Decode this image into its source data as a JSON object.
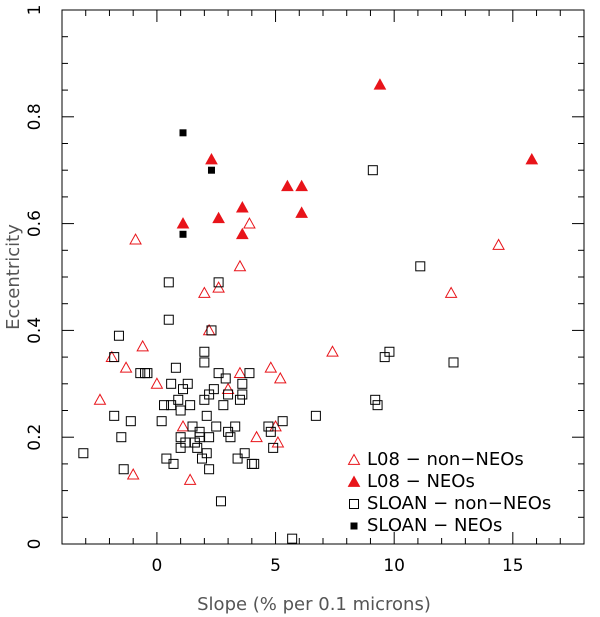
{
  "chart_data": {
    "type": "scatter",
    "title": "",
    "xlabel": "Slope (% per 0.1 microns)",
    "ylabel": "Eccentricity",
    "xlim": [
      -4,
      18
    ],
    "ylim": [
      0,
      1
    ],
    "x_ticks": [
      0,
      5,
      10,
      15
    ],
    "y_ticks": [
      0,
      0.2,
      0.4,
      0.6,
      0.8,
      1
    ],
    "grid": false,
    "legend_position": "bottom-right",
    "series": [
      {
        "name": "L08 − non−NEOs",
        "marker": "open-triangle",
        "color": "#e8141a",
        "points": [
          [
            -2.4,
            0.27
          ],
          [
            -1.9,
            0.35
          ],
          [
            -1.3,
            0.33
          ],
          [
            -0.9,
            0.57
          ],
          [
            -0.6,
            0.37
          ],
          [
            0.0,
            0.3
          ],
          [
            1.1,
            0.22
          ],
          [
            1.4,
            0.12
          ],
          [
            2.2,
            0.4
          ],
          [
            2.0,
            0.47
          ],
          [
            2.6,
            0.48
          ],
          [
            3.0,
            0.29
          ],
          [
            3.5,
            0.52
          ],
          [
            3.9,
            0.6
          ],
          [
            3.5,
            0.32
          ],
          [
            4.2,
            0.2
          ],
          [
            4.8,
            0.33
          ],
          [
            5.0,
            0.22
          ],
          [
            5.1,
            0.19
          ],
          [
            5.2,
            0.31
          ],
          [
            7.4,
            0.36
          ],
          [
            12.4,
            0.47
          ],
          [
            14.4,
            0.56
          ],
          [
            -1.0,
            0.13
          ]
        ]
      },
      {
        "name": "L08 − NEOs",
        "marker": "filled-triangle",
        "color": "#e8141a",
        "points": [
          [
            9.4,
            0.86
          ],
          [
            15.8,
            0.72
          ],
          [
            1.1,
            0.6
          ],
          [
            2.3,
            0.72
          ],
          [
            2.6,
            0.61
          ],
          [
            3.6,
            0.63
          ],
          [
            3.6,
            0.58
          ],
          [
            5.5,
            0.67
          ],
          [
            6.1,
            0.67
          ],
          [
            6.1,
            0.62
          ]
        ]
      },
      {
        "name": "SLOAN − non−NEOs",
        "marker": "open-square",
        "color": "#000000",
        "points": [
          [
            -3.1,
            0.17
          ],
          [
            -1.8,
            0.35
          ],
          [
            -1.8,
            0.24
          ],
          [
            -1.6,
            0.39
          ],
          [
            -1.5,
            0.2
          ],
          [
            -1.4,
            0.14
          ],
          [
            -1.1,
            0.23
          ],
          [
            -0.7,
            0.32
          ],
          [
            -0.5,
            0.32
          ],
          [
            -0.4,
            0.32
          ],
          [
            0.2,
            0.23
          ],
          [
            0.3,
            0.26
          ],
          [
            0.5,
            0.42
          ],
          [
            0.5,
            0.49
          ],
          [
            0.6,
            0.3
          ],
          [
            0.6,
            0.26
          ],
          [
            0.7,
            0.15
          ],
          [
            0.8,
            0.33
          ],
          [
            0.9,
            0.27
          ],
          [
            1.0,
            0.25
          ],
          [
            1.0,
            0.2
          ],
          [
            1.1,
            0.29
          ],
          [
            1.2,
            0.19
          ],
          [
            1.3,
            0.3
          ],
          [
            1.4,
            0.26
          ],
          [
            1.5,
            0.22
          ],
          [
            1.6,
            0.19
          ],
          [
            1.7,
            0.18
          ],
          [
            1.8,
            0.21
          ],
          [
            1.9,
            0.16
          ],
          [
            2.0,
            0.36
          ],
          [
            2.0,
            0.34
          ],
          [
            2.0,
            0.27
          ],
          [
            2.1,
            0.24
          ],
          [
            2.1,
            0.17
          ],
          [
            2.2,
            0.14
          ],
          [
            2.2,
            0.28
          ],
          [
            2.3,
            0.4
          ],
          [
            2.4,
            0.29
          ],
          [
            2.5,
            0.22
          ],
          [
            2.6,
            0.49
          ],
          [
            2.6,
            0.32
          ],
          [
            2.7,
            0.08
          ],
          [
            2.8,
            0.26
          ],
          [
            2.9,
            0.31
          ],
          [
            3.0,
            0.21
          ],
          [
            3.0,
            0.28
          ],
          [
            3.1,
            0.2
          ],
          [
            3.3,
            0.22
          ],
          [
            3.4,
            0.16
          ],
          [
            3.5,
            0.27
          ],
          [
            3.6,
            0.28
          ],
          [
            3.7,
            0.17
          ],
          [
            3.9,
            0.32
          ],
          [
            4.0,
            0.15
          ],
          [
            4.1,
            0.15
          ],
          [
            4.7,
            0.22
          ],
          [
            4.8,
            0.21
          ],
          [
            4.9,
            0.18
          ],
          [
            5.3,
            0.23
          ],
          [
            5.7,
            0.01
          ],
          [
            6.7,
            0.24
          ],
          [
            9.1,
            0.7
          ],
          [
            9.2,
            0.27
          ],
          [
            9.3,
            0.26
          ],
          [
            9.6,
            0.35
          ],
          [
            9.8,
            0.36
          ],
          [
            11.1,
            0.52
          ],
          [
            12.5,
            0.34
          ],
          [
            2.2,
            0.2
          ],
          [
            1.0,
            0.18
          ],
          [
            1.8,
            0.2
          ],
          [
            3.6,
            0.3
          ],
          [
            0.4,
            0.16
          ]
        ]
      },
      {
        "name": "SLOAN − NEOs",
        "marker": "filled-square",
        "color": "#000000",
        "points": [
          [
            1.1,
            0.77
          ],
          [
            2.3,
            0.7
          ],
          [
            1.1,
            0.58
          ]
        ]
      }
    ]
  }
}
